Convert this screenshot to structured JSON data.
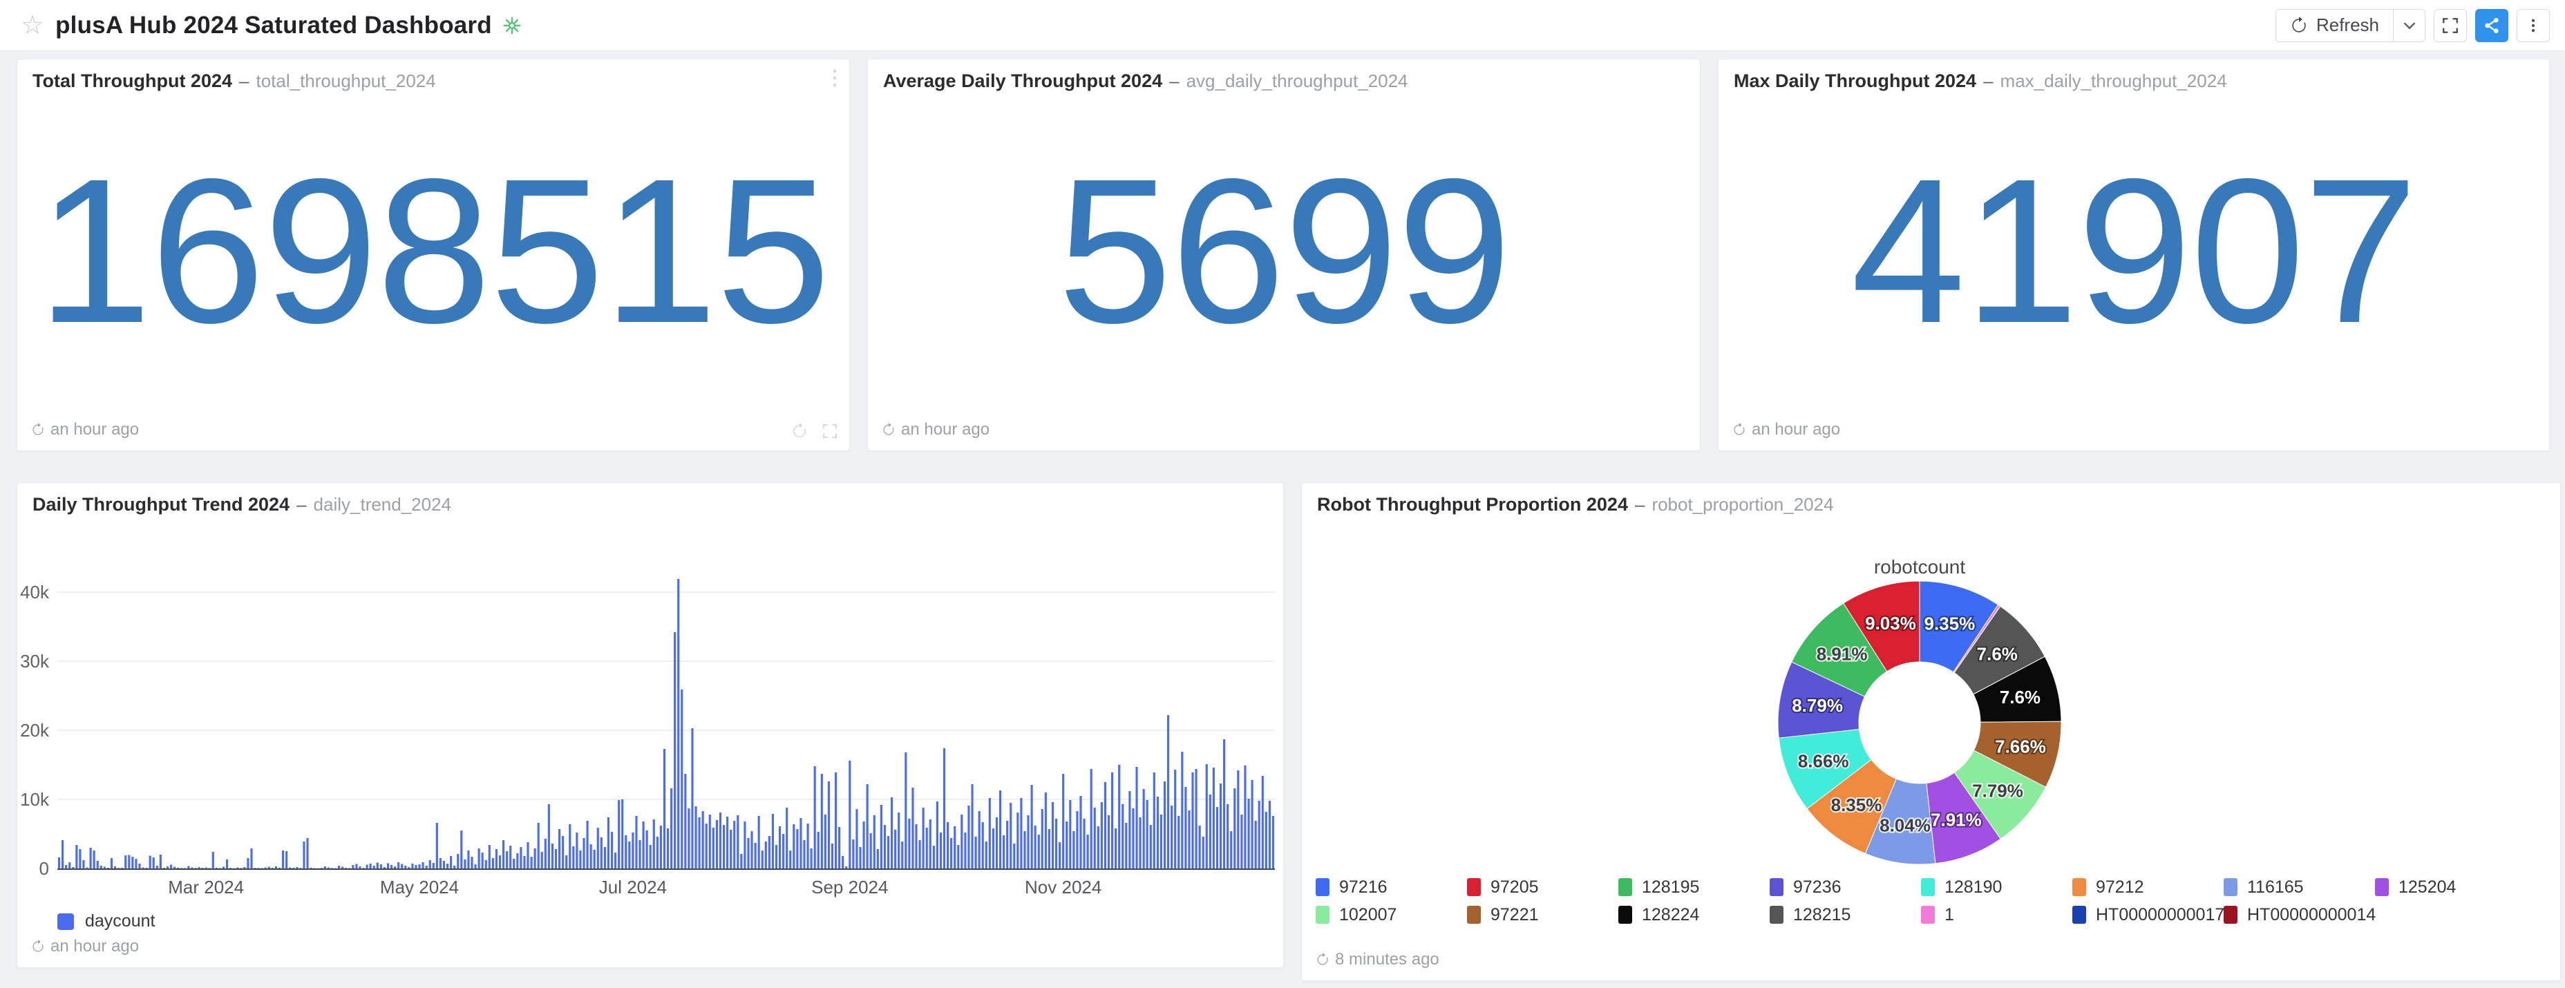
{
  "ui": {
    "dash": "–"
  },
  "header": {
    "title": "plusA Hub 2024 Saturated Dashboard",
    "star_icon": "star-outline",
    "badge_icon": "green-flower-public-badge",
    "refresh_label": "Refresh",
    "accent_color": "#2f93ee"
  },
  "stat_panels": [
    {
      "title": "Total Throughput 2024",
      "subtitle": "total_throughput_2024",
      "value": "1698515",
      "updated": "an hour ago",
      "value_color": "#3879b9"
    },
    {
      "title": "Average Daily Throughput 2024",
      "subtitle": "avg_daily_throughput_2024",
      "value": "5699",
      "updated": "an hour ago",
      "value_color": "#3879b9"
    },
    {
      "title": "Max Daily Throughput 2024",
      "subtitle": "max_daily_throughput_2024",
      "value": "41907",
      "updated": "an hour ago",
      "value_color": "#3879b9"
    }
  ],
  "trend_panel": {
    "title": "Daily Throughput Trend 2024",
    "subtitle": "daily_trend_2024",
    "legend_label": "daycount",
    "updated": "an hour ago"
  },
  "proportion_panel": {
    "title": "Robot Throughput Proportion 2024",
    "subtitle": "robot_proportion_2024",
    "chart_title": "robotcount",
    "updated": "8 minutes ago",
    "legend": [
      {
        "label": "97216",
        "color": "#3d6bf2"
      },
      {
        "label": "97205",
        "color": "#d9202e"
      },
      {
        "label": "128195",
        "color": "#3eba60"
      },
      {
        "label": "97236",
        "color": "#5b55d6"
      },
      {
        "label": "128190",
        "color": "#41ecd8"
      },
      {
        "label": "97212",
        "color": "#ee8a40"
      },
      {
        "label": "116165",
        "color": "#7d9ae9"
      },
      {
        "label": "125204",
        "color": "#a24fe3"
      },
      {
        "label": "102007",
        "color": "#8beb9c"
      },
      {
        "label": "97221",
        "color": "#a5612e"
      },
      {
        "label": "128224",
        "color": "#0a0a0a"
      },
      {
        "label": "128215",
        "color": "#555555"
      },
      {
        "label": "1",
        "color": "#f27ad8"
      },
      {
        "label": "HT00000000017",
        "color": "#1841b0"
      },
      {
        "label": "HT00000000014",
        "color": "#9c1423"
      }
    ]
  },
  "chart_data": [
    {
      "type": "bar",
      "title": "Daily Throughput Trend 2024",
      "xlabel": "",
      "ylabel": "",
      "ylim": [
        0,
        43000
      ],
      "grid": true,
      "legend_position": "bottom-left",
      "bar_color": "#4b6cf0",
      "y_ticks": [
        "0",
        "10k",
        "20k",
        "30k",
        "40k"
      ],
      "x_ticks": [
        {
          "label": "Mar 2024",
          "index": 42
        },
        {
          "label": "May 2024",
          "index": 103
        },
        {
          "label": "Jul 2024",
          "index": 164
        },
        {
          "label": "Sep 2024",
          "index": 226
        },
        {
          "label": "Nov 2024",
          "index": 287
        }
      ],
      "x_start": "2024-01-19",
      "series": [
        {
          "name": "daycount",
          "values": [
            1600,
            4100,
            500,
            900,
            200,
            3400,
            2800,
            1200,
            150,
            3000,
            2600,
            1100,
            400,
            250,
            100,
            1500,
            300,
            80,
            120,
            1900,
            1950,
            1700,
            1400,
            700,
            150,
            100,
            1850,
            1600,
            400,
            2000,
            100,
            300,
            550,
            250,
            120,
            80,
            60,
            350,
            150,
            90,
            200,
            100,
            150,
            80,
            2400,
            120,
            60,
            250,
            1300,
            90,
            50,
            150,
            70,
            200,
            1500,
            2900,
            100,
            80,
            60,
            150,
            250,
            90,
            300,
            120,
            2600,
            2500,
            150,
            100,
            200,
            80,
            3900,
            4400,
            120,
            60,
            40,
            90,
            300,
            150,
            70,
            50,
            400,
            250,
            100,
            60,
            500,
            650,
            300,
            80,
            550,
            700,
            400,
            850,
            600,
            200,
            750,
            500,
            300,
            900,
            650,
            400,
            200,
            700,
            500,
            600,
            900,
            400,
            1200,
            800,
            6600,
            1500,
            1100,
            700,
            1800,
            400,
            2100,
            5500,
            1300,
            2600,
            1700,
            600,
            2900,
            2300,
            1200,
            3400,
            1500,
            2800,
            1900,
            4100,
            2500,
            3300,
            1400,
            2200,
            3100,
            1800,
            3800,
            1700,
            2900,
            6600,
            2400,
            4300,
            9300,
            3600,
            2800,
            5700,
            4700,
            1900,
            6400,
            3200,
            5200,
            2600,
            4400,
            6900,
            3500,
            2700,
            5900,
            4500,
            3100,
            7400,
            5300,
            2300,
            9900,
            10000,
            4800,
            3900,
            5200,
            7600,
            4100,
            6800,
            5500,
            3400,
            7100,
            4600,
            6200,
            17300,
            5800,
            11600,
            34200,
            41907,
            25900,
            13700,
            8700,
            20300,
            9000,
            7400,
            8300,
            6500,
            7800,
            5900,
            7000,
            8100,
            6300,
            7500,
            5600,
            6900,
            7700,
            2100,
            6800,
            4400,
            5400,
            3700,
            7600,
            2600,
            3900,
            4700,
            7900,
            3400,
            6100,
            5000,
            8800,
            2600,
            6400,
            5700,
            7300,
            4100,
            6500,
            2900,
            14800,
            5300,
            13700,
            7800,
            12600,
            3600,
            13900,
            6000,
            1800,
            300,
            15600,
            4200,
            8600,
            3100,
            6800,
            12200,
            5100,
            7700,
            2800,
            9200,
            6300,
            4700,
            10300,
            5600,
            8100,
            3900,
            16800,
            7200,
            11700,
            6400,
            4100,
            8800,
            5900,
            7100,
            3300,
            9700,
            5200,
            17400,
            6700,
            4400,
            6100,
            3400,
            7800,
            5200,
            9100,
            12200,
            4600,
            8300,
            6700,
            3900,
            10200,
            5800,
            7400,
            11300,
            4800,
            6900,
            9500,
            3600,
            8100,
            10200,
            5400,
            7700,
            12100,
            6200,
            4900,
            8600,
            11000,
            5700,
            9600,
            7200,
            3800,
            13700,
            6800,
            9900,
            5400,
            8300,
            10500,
            7200,
            4900,
            14400,
            8800,
            6100,
            9600,
            12500,
            7700,
            13900,
            5800,
            15000,
            9300,
            6600,
            11200,
            8700,
            14700,
            7400,
            11500,
            9900,
            6300,
            13900,
            10400,
            7800,
            12600,
            22200,
            9100,
            14300,
            7600,
            16900,
            11800,
            8400,
            13900,
            14400,
            6200,
            4600,
            15100,
            10700,
            14600,
            8900,
            12300,
            18700,
            9300,
            5400,
            11600,
            14200,
            7800,
            14900,
            10100,
            12800,
            6900,
            9800,
            13400,
            8200,
            9800,
            7600
          ]
        }
      ]
    },
    {
      "type": "pie",
      "title": "robotcount",
      "donut": true,
      "slices": [
        {
          "name": "97216",
          "value": 9.35,
          "label": "9.35%",
          "color": "#3d6bf2",
          "label_color": "#ffffff"
        },
        {
          "name": "1",
          "value": 0.29,
          "label": "",
          "color": "#f27ad8",
          "label_color": ""
        },
        {
          "name": "HT00000000017",
          "value": 0.01,
          "label": "",
          "color": "#1841b0",
          "label_color": ""
        },
        {
          "name": "HT00000000014",
          "value": 0.01,
          "label": "",
          "color": "#9c1423",
          "label_color": ""
        },
        {
          "name": "128215",
          "value": 7.6,
          "label": "7.6%",
          "color": "#555555",
          "label_color": "#ffffff"
        },
        {
          "name": "128224",
          "value": 7.6,
          "label": "7.6%",
          "color": "#0a0a0a",
          "label_color": "#ffffff"
        },
        {
          "name": "97221",
          "value": 7.66,
          "label": "7.66%",
          "color": "#a5612e",
          "label_color": "#ffffff"
        },
        {
          "name": "102007",
          "value": 7.79,
          "label": "7.79%",
          "color": "#8beb9c",
          "label_color": "#3c4043"
        },
        {
          "name": "125204",
          "value": 7.91,
          "label": "7.91%",
          "color": "#a24fe3",
          "label_color": "#ffffff"
        },
        {
          "name": "116165",
          "value": 8.04,
          "label": "8.04%",
          "color": "#7d9ae9",
          "label_color": "#3c4043"
        },
        {
          "name": "97212",
          "value": 8.35,
          "label": "8.35%",
          "color": "#ee8a40",
          "label_color": "#3c4043"
        },
        {
          "name": "128190",
          "value": 8.66,
          "label": "8.66%",
          "color": "#41ecd8",
          "label_color": "#3c4043"
        },
        {
          "name": "97236",
          "value": 8.79,
          "label": "8.79%",
          "color": "#5b55d6",
          "label_color": "#ffffff"
        },
        {
          "name": "128195",
          "value": 8.91,
          "label": "8.91%",
          "color": "#3eba60",
          "label_color": "#3c4043"
        },
        {
          "name": "97205",
          "value": 9.03,
          "label": "9.03%",
          "color": "#d9202e",
          "label_color": "#ffffff"
        }
      ]
    }
  ]
}
